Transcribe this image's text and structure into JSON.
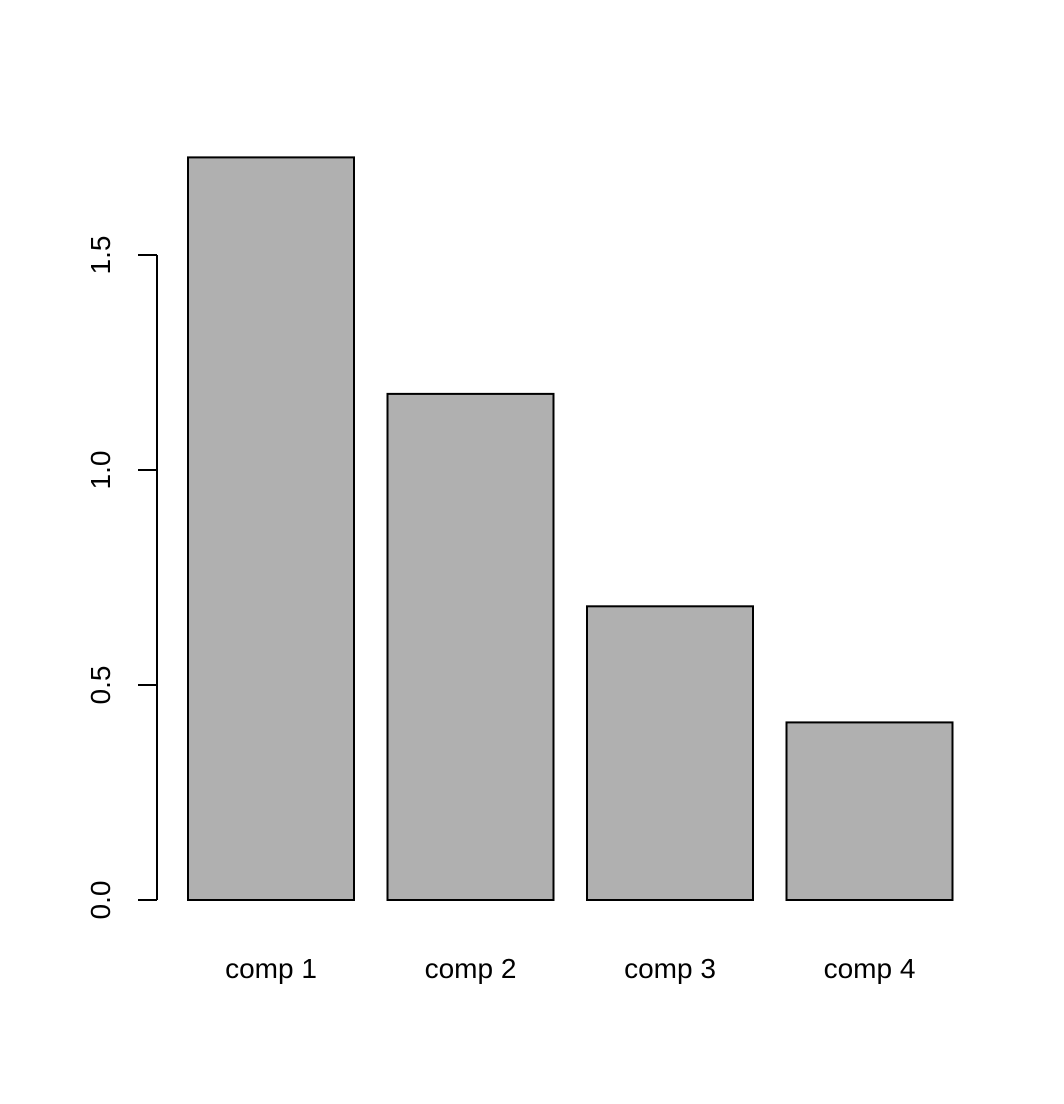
{
  "colors": {
    "bar_fill": "#b0b0b0",
    "bar_stroke": "#000000",
    "axis": "#000000",
    "background": "#ffffff"
  },
  "chart_data": {
    "type": "bar",
    "title": "",
    "xlabel": "",
    "ylabel": "",
    "categories": [
      "comp 1",
      "comp 2",
      "comp 3",
      "comp 4"
    ],
    "values": [
      1.727,
      1.177,
      0.683,
      0.413
    ],
    "ylim": [
      0,
      1.5
    ],
    "yticks": [
      0,
      0.5,
      1,
      1.5
    ],
    "ytick_labels": [
      "0.0",
      "0.5",
      "1.0",
      "1.5"
    ],
    "grid": false,
    "legend": "none"
  }
}
